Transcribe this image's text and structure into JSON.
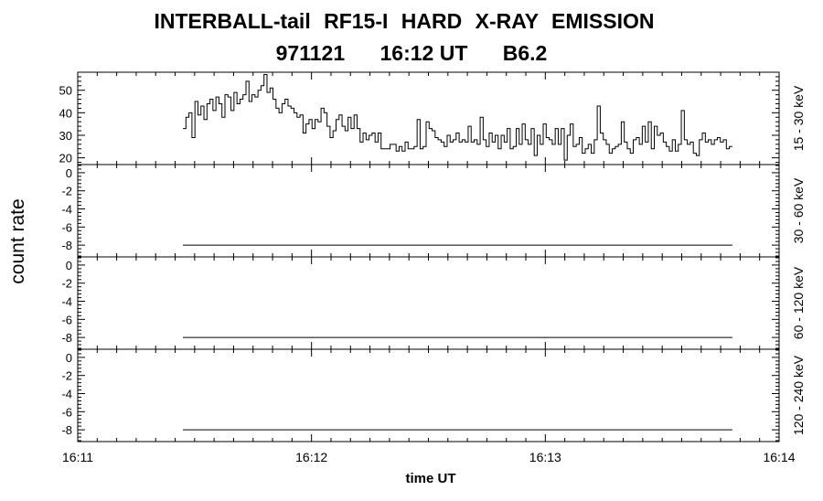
{
  "chart_data": {
    "type": "line",
    "title": "INTERBALL-tail  RF15-I  HARD  X-RAY  EMISSION",
    "subtitle_parts": [
      "971121",
      "16:12 UT",
      "B6.2"
    ],
    "ylabel": "count rate",
    "xlabel": "time UT",
    "x_ticks": [
      "16:11",
      "16:12",
      "16:13",
      "16:14"
    ],
    "x_range": [
      "16:11",
      "16:14"
    ],
    "panels": [
      {
        "name": "15 - 30 keV",
        "ylim": [
          17,
          58
        ],
        "yticks": [
          20,
          30,
          40,
          50
        ],
        "ytick_labels": [
          "20",
          "30",
          "40",
          "50"
        ],
        "series": {
          "x_start": "16:11:27",
          "x_end": "16:13:48",
          "values": [
            33,
            38,
            40,
            29,
            45,
            39,
            43,
            37,
            44,
            46,
            41,
            47,
            44,
            38,
            48,
            47,
            41,
            49,
            44,
            46,
            48,
            54,
            45,
            48,
            47,
            50,
            52,
            57,
            49,
            51,
            46,
            42,
            40,
            44,
            46,
            43,
            42,
            40,
            38,
            39,
            31,
            35,
            37,
            33,
            37,
            36,
            42,
            40,
            34,
            29,
            32,
            37,
            39,
            34,
            32,
            38,
            33,
            39,
            33,
            27,
            31,
            28,
            30,
            31,
            27,
            31,
            24,
            24,
            24,
            26,
            26,
            23,
            25,
            23,
            27,
            24,
            24,
            25,
            37,
            24,
            25,
            36,
            33,
            32,
            29,
            28,
            27,
            25,
            30,
            27,
            28,
            31,
            27,
            28,
            27,
            34,
            27,
            28,
            26,
            38,
            28,
            25,
            31,
            27,
            30,
            24,
            30,
            27,
            33,
            24,
            25,
            33,
            26,
            35,
            28,
            26,
            33,
            21,
            30,
            26,
            35,
            29,
            28,
            26,
            33,
            26,
            33,
            19,
            30,
            35,
            25,
            26,
            29,
            22,
            24,
            26,
            22,
            28,
            43,
            31,
            28,
            26,
            22,
            24,
            25,
            26,
            36,
            27,
            24,
            22,
            28,
            29,
            26,
            34,
            27,
            36,
            24,
            34,
            30,
            31,
            27,
            25,
            23,
            28,
            23,
            26,
            41,
            28,
            26,
            27,
            22,
            21,
            28,
            31,
            27,
            28,
            26,
            28,
            29,
            27,
            28,
            24,
            25
          ]
        }
      },
      {
        "name": "30 - 60 keV",
        "ylim": [
          -9.3,
          0.9
        ],
        "yticks": [
          -8,
          -6,
          -4,
          -2,
          0
        ],
        "ytick_labels": [
          "-8",
          "-6",
          "-4",
          "-2",
          "0"
        ],
        "series": {
          "x_start": "16:11:27",
          "x_end": "16:13:48",
          "value": -8
        }
      },
      {
        "name": "60 - 120 keV",
        "ylim": [
          -9.3,
          0.9
        ],
        "yticks": [
          -8,
          -6,
          -4,
          -2,
          0
        ],
        "ytick_labels": [
          "-8",
          "-6",
          "-4",
          "-2",
          "0"
        ],
        "series": {
          "x_start": "16:11:27",
          "x_end": "16:13:48",
          "value": -8
        }
      },
      {
        "name": "120 - 240 keV",
        "ylim": [
          -9.3,
          0.9
        ],
        "yticks": [
          -8,
          -6,
          -4,
          -2,
          0
        ],
        "ytick_labels": [
          "-8",
          "-6",
          "-4",
          "-2",
          "0"
        ],
        "series": {
          "x_start": "16:11:27",
          "x_end": "16:13:48",
          "value": -8
        }
      }
    ]
  }
}
